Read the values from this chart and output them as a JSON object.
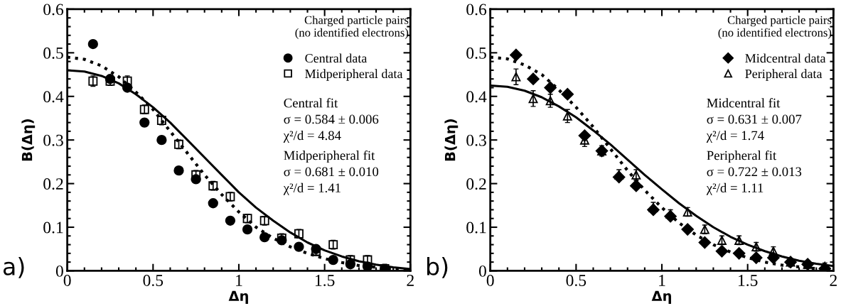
{
  "chart_data": [
    {
      "type": "scatter",
      "xlabel": "Δη",
      "ylabel": "B(Δη)",
      "xlim": [
        0,
        2
      ],
      "ylim": [
        0,
        0.6
      ],
      "xticks": [
        0,
        0.5,
        1,
        1.5,
        2
      ],
      "yticks": [
        0,
        0.1,
        0.2,
        0.3,
        0.4,
        0.5,
        0.6
      ],
      "grid": false,
      "legend": "top right",
      "annotations": [
        "Charged particle pairs\n(no identified electrons)",
        "Central fit\nσ = 0.584 ± 0.006\nχ²/d = 4.84",
        "Midperipheral fit\nσ = 0.681 ± 0.010\nχ²/d = 1.41",
        "a)"
      ],
      "series": [
        {
          "name": "Central data",
          "marker": "circle",
          "color": "#000000",
          "x": [
            0.15,
            0.25,
            0.35,
            0.45,
            0.55,
            0.65,
            0.75,
            0.85,
            0.95,
            1.05,
            1.15,
            1.25,
            1.35,
            1.45,
            1.55,
            1.65,
            1.75,
            1.85
          ],
          "values": [
            0.52,
            0.44,
            0.42,
            0.34,
            0.3,
            0.23,
            0.21,
            0.155,
            0.115,
            0.095,
            0.077,
            0.07,
            0.055,
            0.05,
            0.025,
            0.015,
            0.01,
            0.003
          ]
        },
        {
          "name": "Midperipheral data",
          "marker": "square",
          "color": "#000000",
          "x": [
            0.15,
            0.25,
            0.35,
            0.45,
            0.55,
            0.65,
            0.75,
            0.85,
            0.95,
            1.05,
            1.15,
            1.25,
            1.35,
            1.45,
            1.55,
            1.65,
            1.75,
            1.85
          ],
          "values": [
            0.435,
            0.435,
            0.435,
            0.37,
            0.345,
            0.29,
            0.22,
            0.195,
            0.17,
            0.12,
            0.115,
            0.075,
            0.085,
            0.045,
            0.06,
            0.025,
            0.025,
            0.005
          ],
          "errors": [
            0.012,
            0.01,
            0.012,
            0.01,
            0.01,
            0.01,
            0.01,
            0.01,
            0.01,
            0.01,
            0.01,
            0.01,
            0.01,
            0.01,
            0.01,
            0.01,
            0.01,
            0.01
          ]
        },
        {
          "type": "line",
          "line_style": "dotted",
          "color": "#000000",
          "x": [
            0,
            0.1,
            0.2,
            0.3,
            0.4,
            0.5,
            0.6,
            0.7,
            0.8,
            0.9,
            1.0,
            1.1,
            1.2,
            1.3,
            1.4,
            1.5,
            1.6,
            1.7,
            1.8,
            1.9,
            2.0
          ],
          "values": [
            0.49,
            0.485,
            0.47,
            0.445,
            0.41,
            0.37,
            0.32,
            0.27,
            0.22,
            0.175,
            0.135,
            0.1,
            0.075,
            0.055,
            0.04,
            0.028,
            0.019,
            0.012,
            0.008,
            0.005,
            0.003
          ]
        },
        {
          "type": "line",
          "line_style": "solid",
          "color": "#000000",
          "x": [
            0,
            0.1,
            0.2,
            0.3,
            0.4,
            0.5,
            0.6,
            0.7,
            0.8,
            0.9,
            1.0,
            1.1,
            1.2,
            1.3,
            1.4,
            1.5,
            1.6,
            1.7,
            1.8,
            1.9,
            2.0
          ],
          "values": [
            0.46,
            0.457,
            0.447,
            0.43,
            0.405,
            0.375,
            0.34,
            0.3,
            0.26,
            0.22,
            0.18,
            0.145,
            0.115,
            0.088,
            0.065,
            0.047,
            0.033,
            0.022,
            0.014,
            0.008,
            0.004
          ]
        }
      ]
    },
    {
      "type": "scatter",
      "xlabel": "Δη",
      "ylabel": "B(Δη)",
      "xlim": [
        0,
        2
      ],
      "ylim": [
        0,
        0.6
      ],
      "xticks": [
        0,
        0.5,
        1,
        1.5,
        2
      ],
      "yticks": [
        0,
        0.1,
        0.2,
        0.3,
        0.4,
        0.5,
        0.6
      ],
      "grid": false,
      "legend": "top right",
      "annotations": [
        "Charged particle pairs\n(no identified electrons)",
        "Midcentral fit\nσ = 0.631 ± 0.007\nχ²/d = 1.74",
        "Peripheral fit\nσ = 0.722 ± 0.013\nχ²/d = 1.11",
        "b)"
      ],
      "series": [
        {
          "name": "Midcentral data",
          "marker": "diamond",
          "color": "#000000",
          "x": [
            0.15,
            0.25,
            0.35,
            0.45,
            0.55,
            0.65,
            0.75,
            0.85,
            0.95,
            1.05,
            1.15,
            1.25,
            1.35,
            1.45,
            1.55,
            1.65,
            1.75,
            1.85,
            1.95
          ],
          "values": [
            0.495,
            0.44,
            0.42,
            0.405,
            0.31,
            0.275,
            0.215,
            0.195,
            0.14,
            0.125,
            0.095,
            0.065,
            0.045,
            0.04,
            0.03,
            0.03,
            0.02,
            0.015,
            0.005
          ]
        },
        {
          "name": "Peripheral data",
          "marker": "triangle",
          "color": "#000000",
          "x": [
            0.15,
            0.25,
            0.35,
            0.45,
            0.55,
            0.65,
            0.75,
            0.85,
            0.95,
            1.05,
            1.15,
            1.25,
            1.35,
            1.45,
            1.55,
            1.65,
            1.75,
            1.85,
            1.95
          ],
          "values": [
            0.445,
            0.395,
            0.39,
            0.355,
            0.3,
            0.275,
            0.22,
            0.22,
            0.145,
            0.13,
            0.135,
            0.095,
            0.07,
            0.07,
            0.055,
            0.045,
            0.02,
            0.015,
            0.01
          ],
          "errors": [
            0.018,
            0.018,
            0.015,
            0.015,
            0.015,
            0.012,
            0.012,
            0.012,
            0.012,
            0.01,
            0.01,
            0.01,
            0.01,
            0.01,
            0.01,
            0.01,
            0.008,
            0.008,
            0.008
          ]
        },
        {
          "type": "line",
          "line_style": "dotted",
          "color": "#000000",
          "x": [
            0,
            0.1,
            0.2,
            0.3,
            0.4,
            0.5,
            0.6,
            0.7,
            0.8,
            0.9,
            1.0,
            1.1,
            1.2,
            1.3,
            1.4,
            1.5,
            1.6,
            1.7,
            1.8,
            1.9,
            2.0
          ],
          "values": [
            0.49,
            0.486,
            0.472,
            0.45,
            0.415,
            0.375,
            0.33,
            0.28,
            0.23,
            0.185,
            0.145,
            0.11,
            0.082,
            0.06,
            0.043,
            0.03,
            0.02,
            0.013,
            0.009,
            0.005,
            0.003
          ]
        },
        {
          "type": "line",
          "line_style": "solid",
          "color": "#000000",
          "x": [
            0,
            0.1,
            0.2,
            0.3,
            0.4,
            0.5,
            0.6,
            0.7,
            0.8,
            0.9,
            1.0,
            1.1,
            1.2,
            1.3,
            1.4,
            1.5,
            1.6,
            1.7,
            1.8,
            1.9,
            2.0
          ],
          "values": [
            0.425,
            0.422,
            0.413,
            0.398,
            0.377,
            0.352,
            0.322,
            0.29,
            0.255,
            0.22,
            0.187,
            0.155,
            0.126,
            0.1,
            0.078,
            0.06,
            0.045,
            0.033,
            0.023,
            0.016,
            0.011
          ]
        }
      ]
    }
  ]
}
